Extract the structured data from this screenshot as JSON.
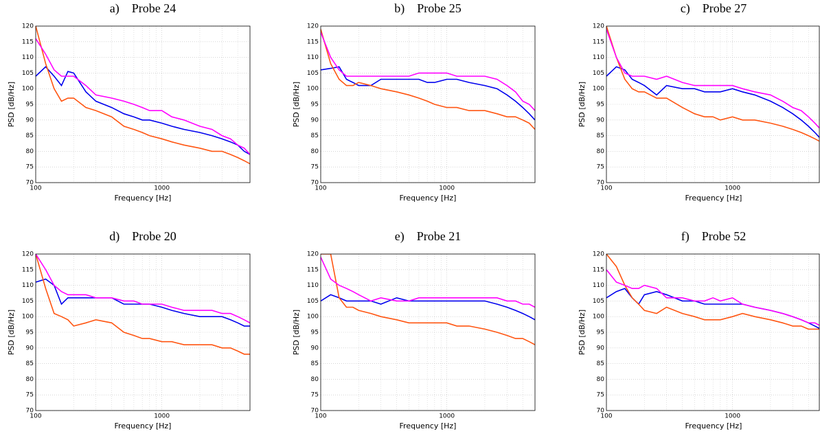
{
  "chart_data": [
    {
      "type": "line",
      "title": "a)    Probe 24",
      "xlabel": "Frequency [Hz]",
      "ylabel": "PSD [dB/Hz]",
      "xscale": "log",
      "x": [
        100,
        120,
        140,
        160,
        180,
        200,
        250,
        300,
        400,
        500,
        600,
        700,
        800,
        1000,
        1200,
        1500,
        2000,
        2500,
        3000,
        3500,
        4000,
        4500,
        5000
      ],
      "xlim": [
        100,
        5000
      ],
      "xticks": [
        100,
        1000
      ],
      "xminorticks": [
        200,
        300,
        400,
        500,
        600,
        700,
        800,
        900,
        2000,
        3000,
        4000
      ],
      "ylim": [
        70,
        120
      ],
      "yticks": [
        70,
        75,
        80,
        85,
        90,
        95,
        100,
        105,
        110,
        115,
        120
      ],
      "grid": true,
      "series": [
        {
          "color": "#0000ee",
          "values": [
            104,
            107,
            104,
            101,
            105.5,
            105,
            99,
            96,
            94,
            92,
            91,
            90,
            90,
            89,
            88,
            87,
            86,
            85,
            84,
            83,
            82,
            80,
            79
          ]
        },
        {
          "color": "#ff5511",
          "values": [
            120,
            108,
            100,
            96,
            97,
            97,
            94,
            93,
            91,
            88,
            87,
            86,
            85,
            84,
            83,
            82,
            81,
            80,
            80,
            79,
            78,
            77,
            76
          ]
        },
        {
          "color": "#ff00ff",
          "values": [
            116,
            111,
            106,
            104,
            104,
            104,
            101,
            98,
            97,
            96,
            95,
            94,
            93,
            93,
            91,
            90,
            88,
            87,
            85,
            84,
            82,
            81,
            79
          ]
        }
      ]
    },
    {
      "type": "line",
      "title": "b)    Probe 25",
      "xlabel": "Frequency [Hz]",
      "ylabel": "PSD [dB/Hz]",
      "xscale": "log",
      "x": [
        100,
        120,
        140,
        160,
        180,
        200,
        250,
        300,
        400,
        500,
        600,
        700,
        800,
        1000,
        1200,
        1500,
        2000,
        2500,
        3000,
        3500,
        4000,
        4500,
        5000
      ],
      "xlim": [
        100,
        5000
      ],
      "xticks": [
        100,
        1000
      ],
      "xminorticks": [
        200,
        300,
        400,
        500,
        600,
        700,
        800,
        900,
        2000,
        3000,
        4000
      ],
      "ylim": [
        70,
        120
      ],
      "yticks": [
        70,
        75,
        80,
        85,
        90,
        95,
        100,
        105,
        110,
        115,
        120
      ],
      "grid": true,
      "series": [
        {
          "color": "#0000ee",
          "values": [
            106,
            106.5,
            107,
            103,
            102,
            101,
            101,
            103,
            103,
            103,
            103,
            102,
            102,
            103,
            103,
            102,
            101,
            100,
            98,
            96,
            94,
            92,
            90
          ]
        },
        {
          "color": "#ff5511",
          "values": [
            119,
            108,
            103,
            101,
            101,
            102,
            101,
            100,
            99,
            98,
            97,
            96,
            95,
            94,
            94,
            93,
            93,
            92,
            91,
            91,
            90,
            89,
            87
          ]
        },
        {
          "color": "#ff00ff",
          "values": [
            118,
            110,
            106,
            104,
            104,
            104,
            104,
            104,
            104,
            104,
            105,
            105,
            105,
            105,
            104,
            104,
            104,
            103,
            101,
            99,
            96,
            95,
            93
          ]
        }
      ]
    },
    {
      "type": "line",
      "title": "c)    Probe 27",
      "xlabel": "Frequency [Hz]",
      "ylabel": "PSD [dB/Hz]",
      "xscale": "log",
      "x": [
        100,
        120,
        140,
        160,
        180,
        200,
        250,
        300,
        400,
        500,
        600,
        700,
        800,
        1000,
        1200,
        1500,
        2000,
        2500,
        3000,
        3500,
        4000,
        4500,
        5000
      ],
      "xlim": [
        100,
        5000
      ],
      "xticks": [
        100,
        1000
      ],
      "xminorticks": [
        200,
        300,
        400,
        500,
        600,
        700,
        800,
        900,
        2000,
        3000,
        4000
      ],
      "ylim": [
        70,
        120
      ],
      "yticks": [
        70,
        75,
        80,
        85,
        90,
        95,
        100,
        105,
        110,
        115,
        120
      ],
      "grid": true,
      "series": [
        {
          "color": "#0000ee",
          "values": [
            104,
            107,
            106,
            103,
            102,
            101,
            98,
            101,
            100,
            100,
            99,
            99,
            99,
            100,
            99,
            98,
            96,
            94,
            92,
            90,
            88,
            86,
            84
          ]
        },
        {
          "color": "#ff5511",
          "values": [
            120,
            110,
            103,
            100,
            99,
            99,
            97,
            97,
            94,
            92,
            91,
            91,
            90,
            91,
            90,
            90,
            89,
            88,
            87,
            86,
            85,
            84,
            83
          ]
        },
        {
          "color": "#ff00ff",
          "values": [
            119,
            110,
            105,
            104,
            104,
            104,
            103,
            104,
            102,
            101,
            101,
            101,
            101,
            101,
            100,
            99,
            98,
            96,
            94,
            93,
            91,
            89,
            87
          ]
        }
      ]
    },
    {
      "type": "line",
      "title": "d)    Probe 20",
      "xlabel": "Frequency [Hz]",
      "ylabel": "PSD [dB/Hz]",
      "xscale": "log",
      "x": [
        100,
        120,
        140,
        160,
        180,
        200,
        250,
        300,
        400,
        500,
        600,
        700,
        800,
        1000,
        1200,
        1500,
        2000,
        2500,
        3000,
        3500,
        4000,
        4500,
        5000
      ],
      "xlim": [
        100,
        5000
      ],
      "xticks": [
        100,
        1000
      ],
      "xminorticks": [
        200,
        300,
        400,
        500,
        600,
        700,
        800,
        900,
        2000,
        3000,
        4000
      ],
      "ylim": [
        70,
        120
      ],
      "yticks": [
        70,
        75,
        80,
        85,
        90,
        95,
        100,
        105,
        110,
        115,
        120
      ],
      "grid": true,
      "series": [
        {
          "color": "#0000ee",
          "values": [
            111,
            112,
            110,
            104,
            106,
            106,
            106,
            106,
            106,
            104,
            104,
            104,
            104,
            103,
            102,
            101,
            100,
            100,
            100,
            99,
            98,
            97,
            97
          ]
        },
        {
          "color": "#ff5511",
          "values": [
            120,
            109,
            101,
            100,
            99,
            97,
            98,
            99,
            98,
            95,
            94,
            93,
            93,
            92,
            92,
            91,
            91,
            91,
            90,
            90,
            89,
            88,
            88
          ]
        },
        {
          "color": "#ff00ff",
          "values": [
            120,
            115,
            110,
            108,
            107,
            107,
            107,
            106,
            106,
            105,
            105,
            104,
            104,
            104,
            103,
            102,
            102,
            102,
            101,
            101,
            100,
            99,
            98
          ]
        }
      ]
    },
    {
      "type": "line",
      "title": "e)    Probe 21",
      "xlabel": "Frequency [Hz]",
      "ylabel": "PSD [dB/Hz]",
      "xscale": "log",
      "x": [
        100,
        120,
        140,
        160,
        180,
        200,
        250,
        300,
        400,
        500,
        600,
        700,
        800,
        1000,
        1200,
        1500,
        2000,
        2500,
        3000,
        3500,
        4000,
        4500,
        5000
      ],
      "xlim": [
        100,
        5000
      ],
      "xticks": [
        100,
        1000
      ],
      "xminorticks": [
        200,
        300,
        400,
        500,
        600,
        700,
        800,
        900,
        2000,
        3000,
        4000
      ],
      "ylim": [
        70,
        120
      ],
      "yticks": [
        70,
        75,
        80,
        85,
        90,
        95,
        100,
        105,
        110,
        115,
        120
      ],
      "grid": true,
      "series": [
        {
          "color": "#0000ee",
          "values": [
            105,
            107,
            106,
            105,
            105,
            105,
            105,
            104,
            106,
            105,
            105,
            105,
            105,
            105,
            105,
            105,
            105,
            104,
            103,
            102,
            101,
            100,
            99
          ]
        },
        {
          "color": "#ff5511",
          "values": [
            120,
            120,
            106,
            103,
            103,
            102,
            101,
            100,
            99,
            98,
            98,
            98,
            98,
            98,
            97,
            97,
            96,
            95,
            94,
            93,
            93,
            92,
            91
          ]
        },
        {
          "color": "#ff00ff",
          "values": [
            119,
            112,
            110,
            109,
            108,
            107,
            105,
            106,
            105,
            105,
            106,
            106,
            106,
            106,
            106,
            106,
            106,
            106,
            105,
            105,
            104,
            104,
            103
          ]
        }
      ]
    },
    {
      "type": "line",
      "title": "f)    Probe 52",
      "xlabel": "Frequency [Hz]",
      "ylabel": "PSD [dB/Hz]",
      "xscale": "log",
      "x": [
        100,
        120,
        140,
        160,
        180,
        200,
        250,
        300,
        400,
        500,
        600,
        700,
        800,
        1000,
        1200,
        1500,
        2000,
        2500,
        3000,
        3500,
        4000,
        4500,
        5000
      ],
      "xlim": [
        100,
        5000
      ],
      "xticks": [
        100,
        1000
      ],
      "xminorticks": [
        200,
        300,
        400,
        500,
        600,
        700,
        800,
        900,
        2000,
        3000,
        4000
      ],
      "ylim": [
        70,
        120
      ],
      "yticks": [
        70,
        75,
        80,
        85,
        90,
        95,
        100,
        105,
        110,
        115,
        120
      ],
      "grid": true,
      "series": [
        {
          "color": "#0000ee",
          "values": [
            106,
            108,
            109,
            106,
            104,
            107,
            108,
            107,
            105,
            105,
            104,
            104,
            104,
            104,
            104,
            103,
            102,
            101,
            100,
            99,
            98,
            97,
            96
          ]
        },
        {
          "color": "#ff5511",
          "values": [
            120,
            116,
            110,
            106,
            104,
            102,
            101,
            103,
            101,
            100,
            99,
            99,
            99,
            100,
            101,
            100,
            99,
            98,
            97,
            97,
            96,
            96,
            96
          ]
        },
        {
          "color": "#ff00ff",
          "values": [
            115,
            111,
            110,
            109,
            109,
            110,
            109,
            106,
            106,
            105,
            105,
            106,
            105,
            106,
            104,
            103,
            102,
            101,
            100,
            99,
            98,
            98,
            97
          ]
        }
      ]
    }
  ]
}
